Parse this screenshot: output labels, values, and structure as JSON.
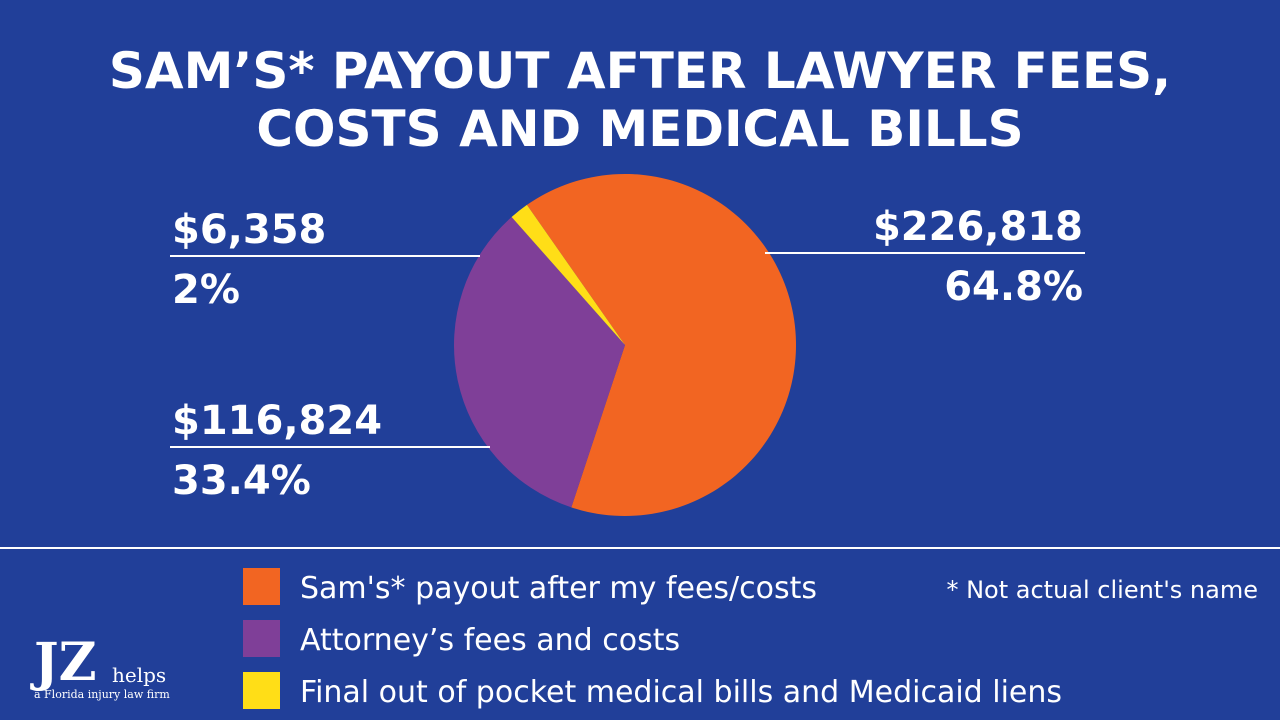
{
  "chart_data": {
    "type": "pie",
    "title": [
      "SAM’S* PAYOUT AFTER LAWYER FEES,",
      "COSTS AND MEDICAL BILLS"
    ],
    "categories": [
      "Sam's* payout after my fees/costs",
      "Attorney’s fees and costs",
      "Final out of pocket medical bills and Medicaid liens"
    ],
    "values": [
      226818,
      116824,
      6358
    ],
    "value_labels": [
      "$226,818",
      "$116,824",
      "$6,358"
    ],
    "percent_labels": [
      "64.8%",
      "33.4%",
      "2%"
    ],
    "colors": [
      "#f26522",
      "#7f3f98",
      "#ffde17"
    ],
    "footnote": "* Not actual client's name"
  },
  "logo": {
    "mark": "JZ",
    "word": "helps",
    "tagline": "a Florida injury law firm"
  }
}
